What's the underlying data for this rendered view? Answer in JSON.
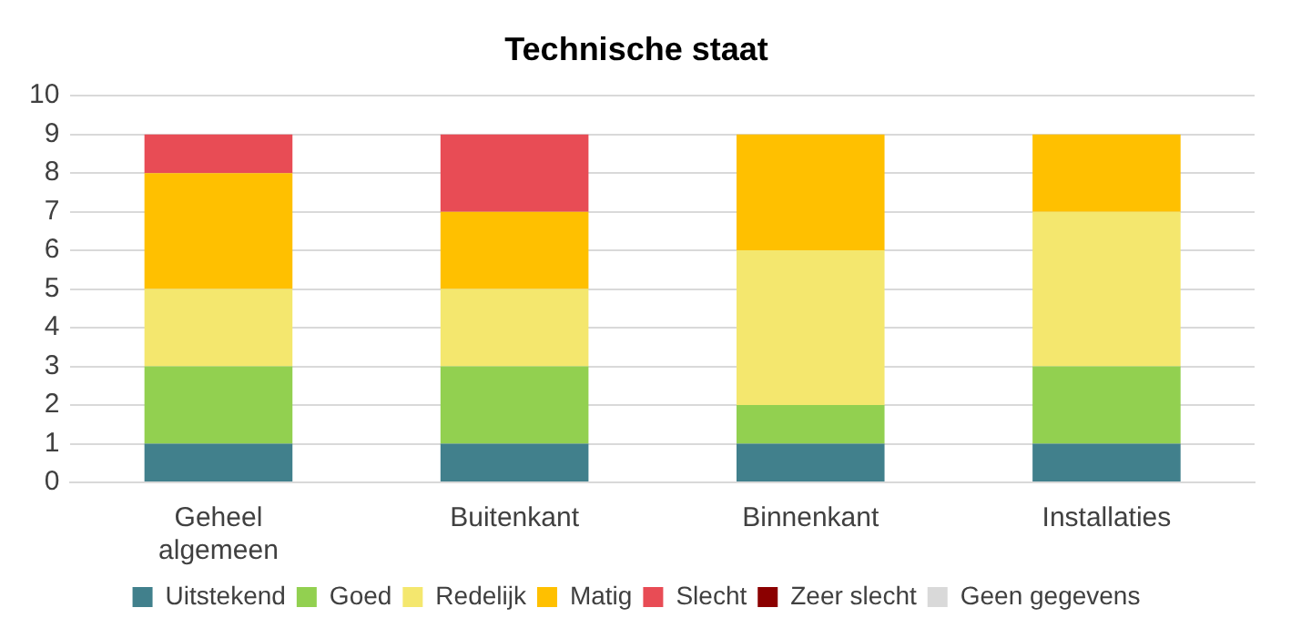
{
  "chart_data": {
    "type": "bar",
    "title": "Technische staat",
    "stacked": true,
    "categories": [
      "Geheel algemeen",
      "Buitenkant",
      "Binnenkant",
      "Installaties"
    ],
    "series": [
      {
        "name": "Uitstekend",
        "color": "#41808c",
        "values": [
          1,
          1,
          1,
          1
        ]
      },
      {
        "name": "Goed",
        "color": "#92d050",
        "values": [
          2,
          2,
          1,
          2
        ]
      },
      {
        "name": "Redelijk",
        "color": "#f4e76e",
        "values": [
          2,
          2,
          4,
          4
        ]
      },
      {
        "name": "Matig",
        "color": "#ffc000",
        "values": [
          3,
          2,
          3,
          2
        ]
      },
      {
        "name": "Slecht",
        "color": "#e84c55",
        "values": [
          1,
          2,
          0,
          0
        ]
      },
      {
        "name": "Zeer slecht",
        "color": "#8b0000",
        "values": [
          0,
          0,
          0,
          0
        ]
      },
      {
        "name": "Geen gegevens",
        "color": "#d9d9d9",
        "values": [
          0,
          0,
          0,
          0
        ]
      }
    ],
    "ylim": [
      0,
      10
    ],
    "yticks": [
      0,
      1,
      2,
      3,
      4,
      5,
      6,
      7,
      8,
      9,
      10
    ],
    "grid": "y",
    "legend": "bottom"
  }
}
